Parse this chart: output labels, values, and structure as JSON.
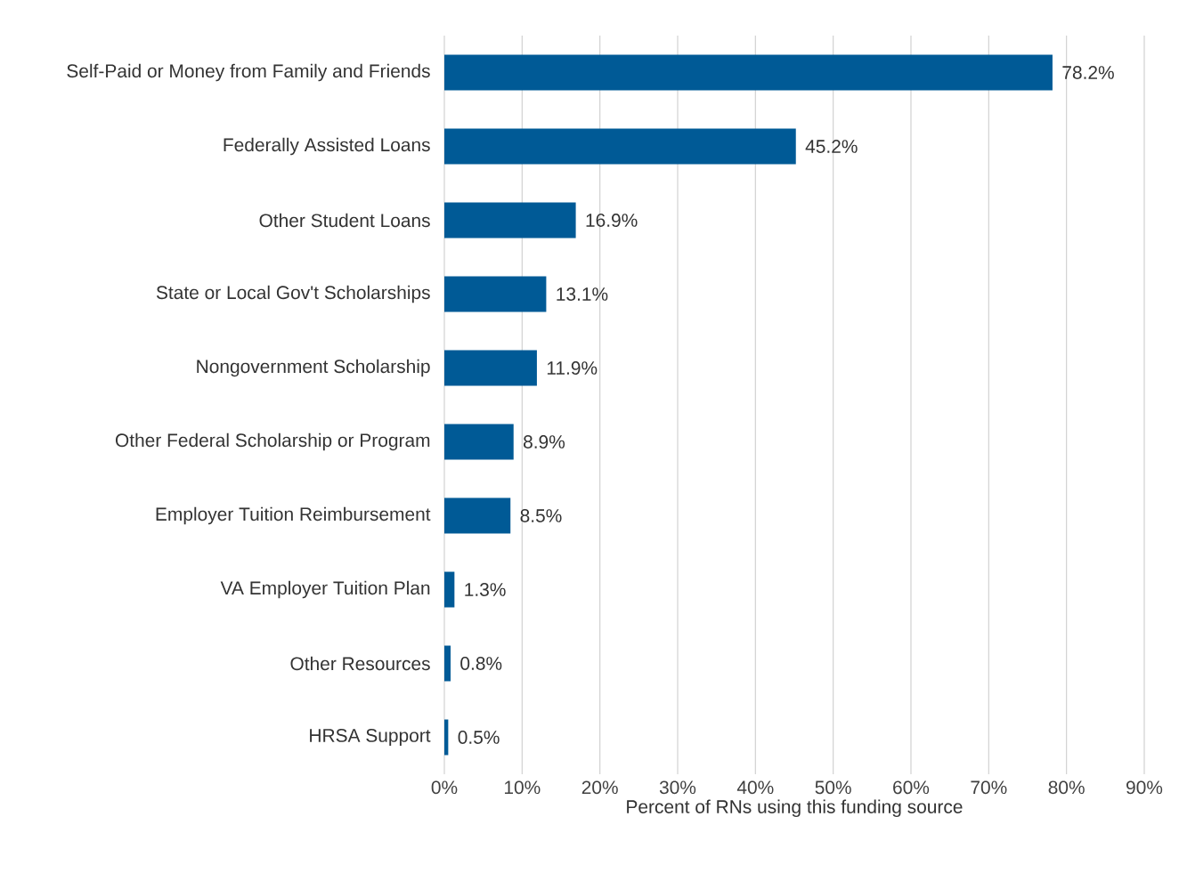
{
  "chart_data": {
    "type": "bar",
    "orientation": "horizontal",
    "categories": [
      "Self-Paid or Money from Family and Friends",
      "Federally Assisted Loans",
      "Other Student Loans",
      "State or Local Gov't Scholarships",
      "Nongovernment Scholarship",
      "Other Federal Scholarship or Program",
      "Employer Tuition Reimbursement",
      "VA Employer Tuition Plan",
      "Other Resources",
      "HRSA Support"
    ],
    "values": [
      78.2,
      45.2,
      16.9,
      13.1,
      11.9,
      8.9,
      8.5,
      1.3,
      0.8,
      0.5
    ],
    "value_labels": [
      "78.2%",
      "45.2%",
      "16.9%",
      "13.1%",
      "11.9%",
      "8.9%",
      "8.5%",
      "1.3%",
      "0.8%",
      "0.5%"
    ],
    "color": "#005a96",
    "xlabel": "Percent of RNs using this funding source",
    "xlim": [
      0,
      90
    ],
    "xticks": [
      {
        "value": 0,
        "label": "0%"
      },
      {
        "value": 10,
        "label": "10%"
      },
      {
        "value": 20,
        "label": "20%"
      },
      {
        "value": 30,
        "label": "30%"
      },
      {
        "value": 40,
        "label": "40%"
      },
      {
        "value": 50,
        "label": "50%"
      },
      {
        "value": 60,
        "label": "60%"
      },
      {
        "value": 70,
        "label": "70%"
      },
      {
        "value": 80,
        "label": "80%"
      },
      {
        "value": 90,
        "label": "90%"
      }
    ],
    "grid": "x"
  }
}
